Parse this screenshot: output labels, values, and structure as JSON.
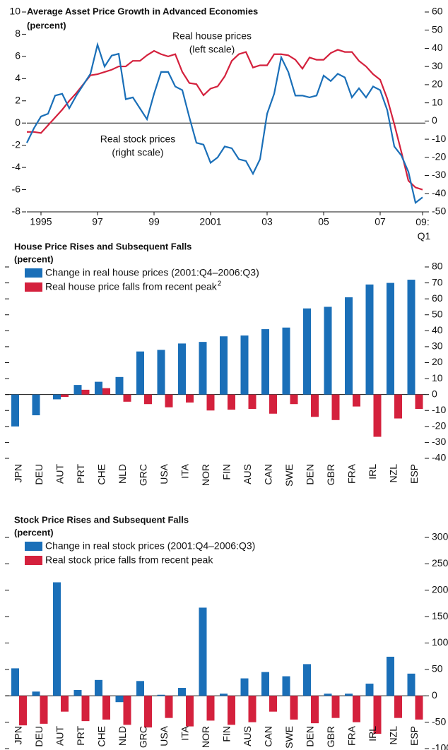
{
  "chart_data": [
    {
      "type": "line",
      "title": "Average Asset Price Growth in Advanced Economies",
      "subtitle": "(percent)",
      "x": [
        1995,
        1995.25,
        1995.5,
        1995.75,
        1996,
        1996.25,
        1996.5,
        1996.75,
        1997,
        1997.25,
        1997.5,
        1997.75,
        1998,
        1998.25,
        1998.5,
        1998.75,
        1999,
        1999.25,
        1999.5,
        1999.75,
        2000,
        2000.25,
        2000.5,
        2000.75,
        2001,
        2001.25,
        2001.5,
        2001.75,
        2002,
        2002.25,
        2002.5,
        2002.75,
        2003,
        2003.25,
        2003.5,
        2003.75,
        2004,
        2004.25,
        2004.5,
        2004.75,
        2005,
        2005.25,
        2005.5,
        2005.75,
        2006,
        2006.25,
        2006.5,
        2006.75,
        2007,
        2007.25,
        2007.5,
        2007.75,
        2008,
        2008.25,
        2008.5,
        2008.75,
        2009
      ],
      "series": [
        {
          "name": "Real house prices",
          "scale_note": "(left scale)",
          "color": "#d4213d",
          "values": [
            -0.8,
            -0.8,
            -0.9,
            -0.2,
            0.5,
            1.2,
            2.0,
            2.7,
            3.5,
            4.3,
            4.4,
            4.6,
            4.8,
            5.1,
            5.1,
            5.6,
            5.6,
            6.1,
            6.5,
            6.2,
            6.0,
            6.2,
            4.6,
            3.6,
            3.5,
            2.5,
            3.1,
            3.3,
            4.2,
            5.6,
            6.2,
            6.4,
            5.0,
            5.2,
            5.2,
            6.2,
            6.2,
            6.1,
            5.7,
            4.9,
            5.9,
            5.7,
            5.7,
            6.3,
            6.6,
            6.4,
            6.4,
            5.6,
            5.1,
            4.4,
            3.9,
            2.2,
            -0.1,
            -2.6,
            -5.2,
            -5.8,
            -6.0
          ]
        },
        {
          "name": "Real stock prices",
          "scale_note": "(right scale)",
          "color": "#1a6fb8",
          "axis": "y2",
          "values": [
            -12,
            -4,
            2.5,
            4,
            14,
            15,
            7,
            14,
            20,
            26,
            42,
            30,
            36,
            37,
            12,
            13,
            7,
            1,
            15,
            27,
            27,
            19,
            17,
            2,
            -12,
            -13,
            -23,
            -20,
            -14,
            -15,
            -21,
            -22,
            -29,
            -21,
            4,
            15,
            35,
            27,
            14,
            14,
            13,
            14,
            25,
            22,
            26,
            24,
            13,
            18,
            13,
            19,
            17,
            6,
            -14,
            -19,
            -28,
            -45,
            -42
          ]
        }
      ],
      "xlim": [
        1995,
        2009
      ],
      "xticks": [
        {
          "value": 1995.5,
          "label": "1995"
        },
        {
          "value": 1997.5,
          "label": "97"
        },
        {
          "value": 1999.5,
          "label": "99"
        },
        {
          "value": 2001.5,
          "label": "2001"
        },
        {
          "value": 2003.5,
          "label": "03"
        },
        {
          "value": 2005.5,
          "label": "05"
        },
        {
          "value": 2007.5,
          "label": "07"
        },
        {
          "value": 2009,
          "label": "09: Q1"
        }
      ],
      "ylim": [
        -8,
        10
      ],
      "yticks": [
        -8,
        -6,
        -4,
        -2,
        0,
        2,
        4,
        6,
        8,
        10
      ],
      "y2lim": [
        -50,
        60
      ],
      "y2ticks": [
        -50,
        -40,
        -30,
        -20,
        -10,
        0,
        10,
        20,
        30,
        40,
        50,
        60
      ]
    },
    {
      "type": "bar",
      "title": "House Price Rises and Subsequent Falls",
      "subtitle": "(percent)",
      "categories": [
        "JPN",
        "DEU",
        "AUT",
        "PRT",
        "CHE",
        "NLD",
        "GRC",
        "USA",
        "ITA",
        "NOR",
        "FIN",
        "AUS",
        "CAN",
        "SWE",
        "DEN",
        "GBR",
        "FRA",
        "IRL",
        "NZL",
        "ESP"
      ],
      "series": [
        {
          "name": "Change in real house prices (2001:Q4–2006:Q3)",
          "color": "#1a6fb8",
          "values": [
            -20,
            -13,
            -3,
            6,
            8,
            11,
            27,
            28,
            32,
            33,
            36.5,
            37,
            41,
            42,
            54,
            55,
            61,
            69,
            70,
            72
          ]
        },
        {
          "name": "Real house price falls from recent peak",
          "footnote": "2",
          "color": "#d4213d",
          "values": [
            null,
            null,
            -1.5,
            3,
            4,
            -4.5,
            -6,
            -8,
            -5,
            -10,
            -9.5,
            -9,
            -12,
            -6,
            -14,
            -16,
            -7.5,
            -26.5,
            -15,
            -9
          ]
        }
      ],
      "ylim": [
        -40,
        80
      ],
      "yticks": [
        -40,
        -30,
        -20,
        -10,
        0,
        10,
        20,
        30,
        40,
        50,
        60,
        70,
        80
      ]
    },
    {
      "type": "bar",
      "title": "Stock Price Rises and Subsequent Falls",
      "subtitle": "(percent)",
      "categories": [
        "JPN",
        "DEU",
        "AUT",
        "PRT",
        "CHE",
        "NLD",
        "GRC",
        "USA",
        "ITA",
        "NOR",
        "FIN",
        "AUS",
        "CAN",
        "SWE",
        "DEN",
        "GBR",
        "FRA",
        "IRL",
        "NZL",
        "ESP"
      ],
      "series": [
        {
          "name": "Change in real stock prices (2001:Q4–2006:Q3)",
          "color": "#1a6fb8",
          "values": [
            52,
            8,
            215,
            11,
            30,
            -12,
            28,
            2,
            15,
            167,
            4,
            33,
            45,
            37,
            60,
            4,
            4,
            23,
            74,
            42
          ]
        },
        {
          "name": "Real stock price falls from recent peak",
          "color": "#d4213d",
          "values": [
            -56,
            -53,
            -30,
            -48,
            -45,
            -55,
            -60,
            -42,
            -58,
            -47,
            -55,
            -50,
            -30,
            -45,
            -52,
            -42,
            -50,
            -72,
            -42,
            -45
          ]
        }
      ],
      "ylim": [
        -100,
        300
      ],
      "yticks": [
        -100,
        -50,
        0,
        50,
        100,
        150,
        200,
        250,
        300
      ]
    }
  ]
}
